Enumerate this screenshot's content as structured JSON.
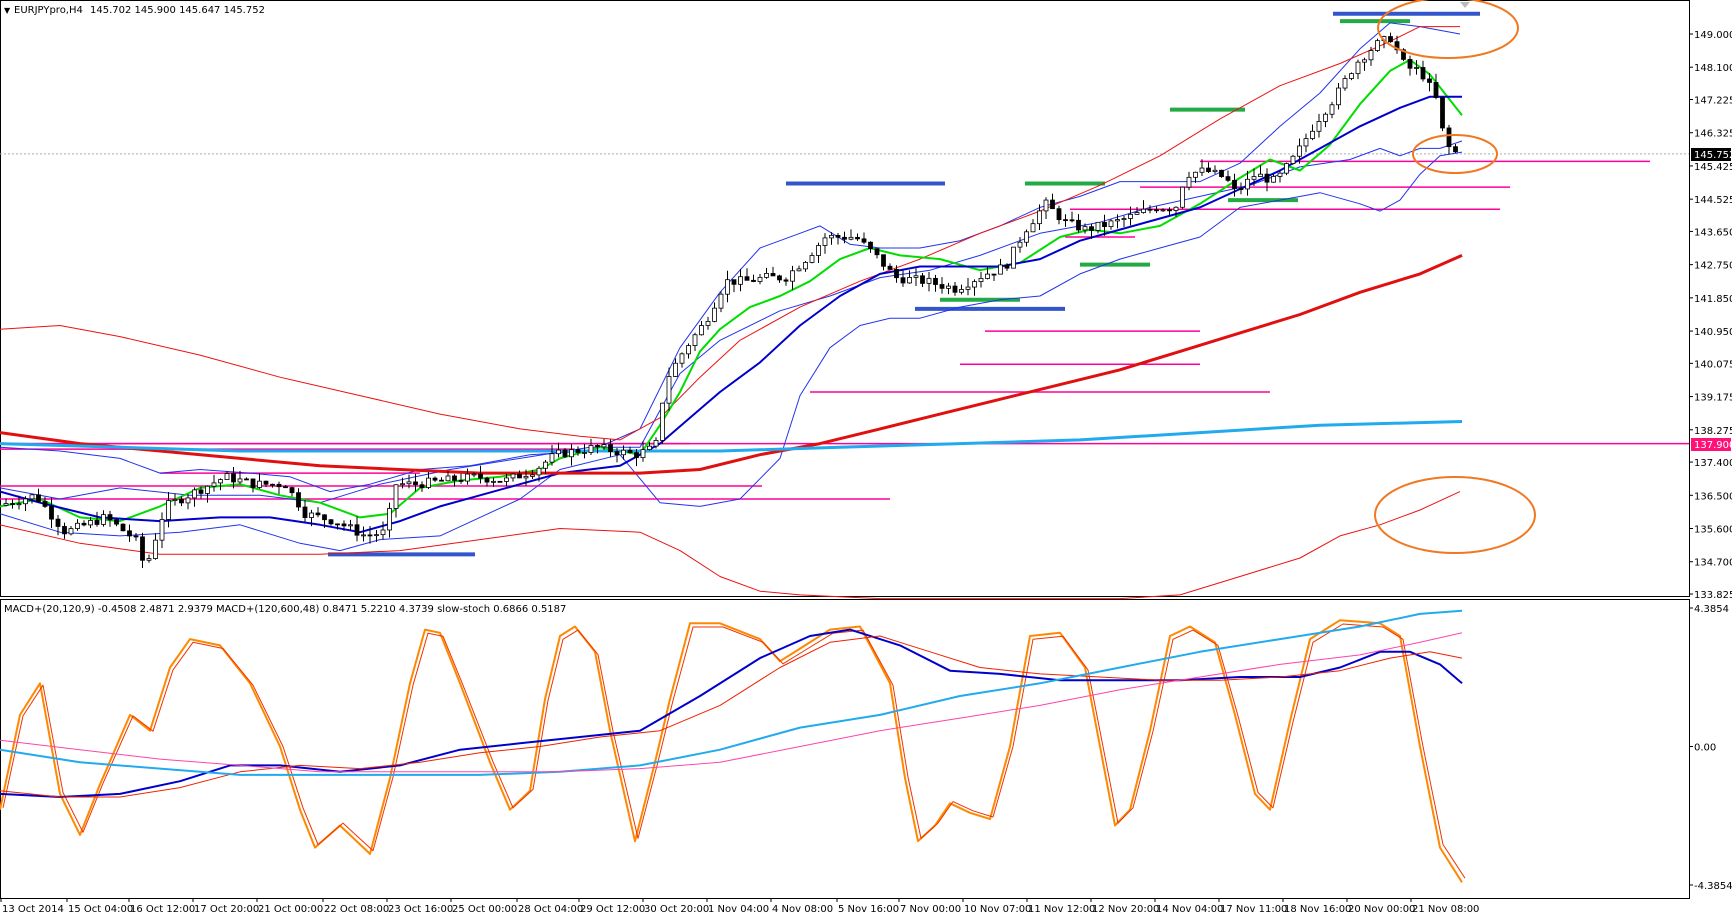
{
  "symbol_header": "EURJPYpro,H4",
  "ohlc_text": "145.702 145.900 145.647 145.752",
  "indicator_header": "MACD+(20,120,9) -0.4508 2.4871 2.9379  MACD+(120,600,48) 0.8471 5.2210 4.3739  slow-stoch 0.6866 0.5187",
  "price_badge_current": "145.752",
  "price_badge_level": "137.900",
  "price_axis": [
    "149.000",
    "148.100",
    "147.225",
    "146.325",
    "145.425",
    "144.525",
    "143.650",
    "142.750",
    "141.850",
    "140.950",
    "140.075",
    "139.175",
    "138.275",
    "137.400",
    "136.500",
    "135.600",
    "134.700",
    "133.825"
  ],
  "indicator_axis": [
    "4.3854",
    "0.00",
    "-4.3854"
  ],
  "time_axis": [
    "13 Oct 2014",
    "15 Oct 04:00",
    "16 Oct 12:00",
    "17 Oct 20:00",
    "21 Oct 00:00",
    "22 Oct 08:00",
    "23 Oct 16:00",
    "25 Oct 00:00",
    "28 Oct 04:00",
    "29 Oct 12:00",
    "30 Oct 20:00",
    "1 Nov 04:00",
    "4 Nov 08:00",
    "5 Nov 16:00",
    "7 Nov 00:00",
    "10 Nov 07:00",
    "11 Nov 12:00",
    "12 Nov 20:00",
    "14 Nov 04:00",
    "17 Nov 11:00",
    "18 Nov 16:00",
    "20 Nov 00:00",
    "21 Nov 08:00"
  ],
  "colors": {
    "up_candle": "#ffffff",
    "down_candle": "#000000",
    "bollinger": "#2233ee",
    "envelope": "#ee1111",
    "ema_fast": "#00dd00",
    "ema_blue": "#0000cc",
    "ma_red_thick": "#e01010",
    "ma_cyan": "#22aaee",
    "level_magenta": "#ff0099",
    "stoch": "#ff8800",
    "annotation_circle": "#f07820",
    "badge_level": "#ff1177"
  }
}
